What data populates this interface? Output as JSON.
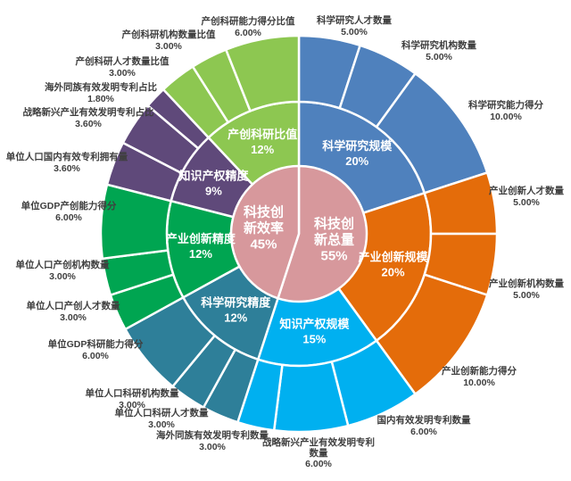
{
  "chart_data": {
    "type": "sunburst",
    "title": "",
    "total": 100,
    "unit": "percent",
    "legend": "none",
    "colors": {
      "center": "#d7989c",
      "science_scale": "#4f81bd",
      "industry_scale": "#e46c0a",
      "ip_scale": "#00b0f0",
      "science_precision": "#2e7f99",
      "industry_precision": "#00a551",
      "ip_precision": "#5f497a",
      "ratio": "#8dc751",
      "outer_label_text": "#3f3f3f",
      "segment_text": "#ffffff",
      "background": "#ffffff"
    },
    "tree": [
      {
        "name": "科技创新总量",
        "value": 55,
        "label_lines": [
          "科技创",
          "新总量",
          "55%"
        ],
        "color": "#d7989c",
        "children": [
          {
            "name": "科学研究规模",
            "value": 20,
            "pct_label": "20%",
            "color": "#4f81bd",
            "children": [
              {
                "name": "科学研究人才数量",
                "value": 5,
                "label_lines": [
                  "科学研究人才数量",
                  "5.00%"
                ]
              },
              {
                "name": "科学研究机构数量",
                "value": 5,
                "label_lines": [
                  "科学研究机构数量",
                  "5.00%"
                ]
              },
              {
                "name": "科学研究能力得分",
                "value": 10,
                "label_lines": [
                  "科学研究能力得分",
                  "10.00%"
                ]
              }
            ]
          },
          {
            "name": "产业创新规模",
            "value": 20,
            "pct_label": "20%",
            "color": "#e46c0a",
            "children": [
              {
                "name": "产业创新人才数量",
                "value": 5,
                "label_lines": [
                  "产业创新人才数量",
                  "5.00%"
                ]
              },
              {
                "name": "产业创新机构数量",
                "value": 5,
                "label_lines": [
                  "产业创新机构数量",
                  "5.00%"
                ]
              },
              {
                "name": "产业创新能力得分",
                "value": 10,
                "label_lines": [
                  "产业创新能力得分",
                  "10.00%"
                ]
              }
            ]
          },
          {
            "name": "知识产权规模",
            "value": 15,
            "pct_label": "15%",
            "color": "#00b0f0",
            "children": [
              {
                "name": "国内有效发明专利数量",
                "value": 6,
                "label_lines": [
                  "国内有效发明专利数量",
                  "6.00%"
                ]
              },
              {
                "name": "战略新兴产业有效发明专利数量",
                "value": 6,
                "label_lines": [
                  "战略新兴产业有效发明专利",
                  "数量",
                  "6.00%"
                ]
              },
              {
                "name": "海外同族有效发明专利数量",
                "value": 3,
                "label_lines": [
                  "海外同族有效发明专利数量",
                  "3.00%"
                ]
              }
            ]
          }
        ]
      },
      {
        "name": "科技创新效率",
        "value": 45,
        "label_lines": [
          "科技创",
          "新效率",
          "45%"
        ],
        "color": "#d7989c",
        "children": [
          {
            "name": "科学研究精度",
            "value": 12,
            "pct_label": "12%",
            "color": "#2e7f99",
            "children": [
              {
                "name": "单位人口科研人才数量",
                "value": 3,
                "label_lines": [
                  "单位人口科研人才数量",
                  "3.00%"
                ]
              },
              {
                "name": "单位人口科研机构数量",
                "value": 3,
                "label_lines": [
                  "单位人口科研机构数量",
                  "3.00%"
                ]
              },
              {
                "name": "单位GDP科研能力得分",
                "value": 6,
                "label_lines": [
                  "单位GDP科研能力得分",
                  "6.00%"
                ]
              }
            ]
          },
          {
            "name": "产业创新精度",
            "value": 12,
            "pct_label": "12%",
            "color": "#00a551",
            "children": [
              {
                "name": "单位人口产创人才数量",
                "value": 3,
                "label_lines": [
                  "单位人口产创人才数量",
                  "3.00%"
                ]
              },
              {
                "name": "单位人口产创机构数量",
                "value": 3,
                "label_lines": [
                  "单位人口产创机构数量",
                  "3.00%"
                ]
              },
              {
                "name": "单位GDP产创能力得分",
                "value": 6,
                "label_lines": [
                  "单位GDP产创能力得分",
                  "6.00%"
                ]
              }
            ]
          },
          {
            "name": "知识产权精度",
            "value": 9,
            "pct_label": "9%",
            "color": "#5f497a",
            "children": [
              {
                "name": "单位人口国内有效专利拥有量",
                "value": 3.6,
                "label_lines": [
                  "单位人口国内有效专利拥有量",
                  "3.60%"
                ]
              },
              {
                "name": "战略新兴产业有效发明专利占比",
                "value": 3.6,
                "label_lines": [
                  "战略新兴产业有效发明专利占比",
                  "3.60%"
                ]
              },
              {
                "name": "海外同族有效发明专利占比",
                "value": 1.8,
                "label_lines": [
                  "海外同族有效发明专利占比",
                  "1.80%"
                ]
              }
            ]
          },
          {
            "name": "产创科研比值",
            "value": 12,
            "pct_label": "12%",
            "color": "#8dc751",
            "children": [
              {
                "name": "产创科研人才数量比值",
                "value": 3,
                "label_lines": [
                  "产创科研人才数量比值",
                  "3.00%"
                ]
              },
              {
                "name": "产创科研机构数量比值",
                "value": 3,
                "label_lines": [
                  "产创科研机构数量比值",
                  "3.00%"
                ]
              },
              {
                "name": "产创科研能力得分比值",
                "value": 6,
                "label_lines": [
                  "产创科研能力得分比值",
                  "6.00%"
                ]
              }
            ]
          }
        ]
      }
    ]
  }
}
